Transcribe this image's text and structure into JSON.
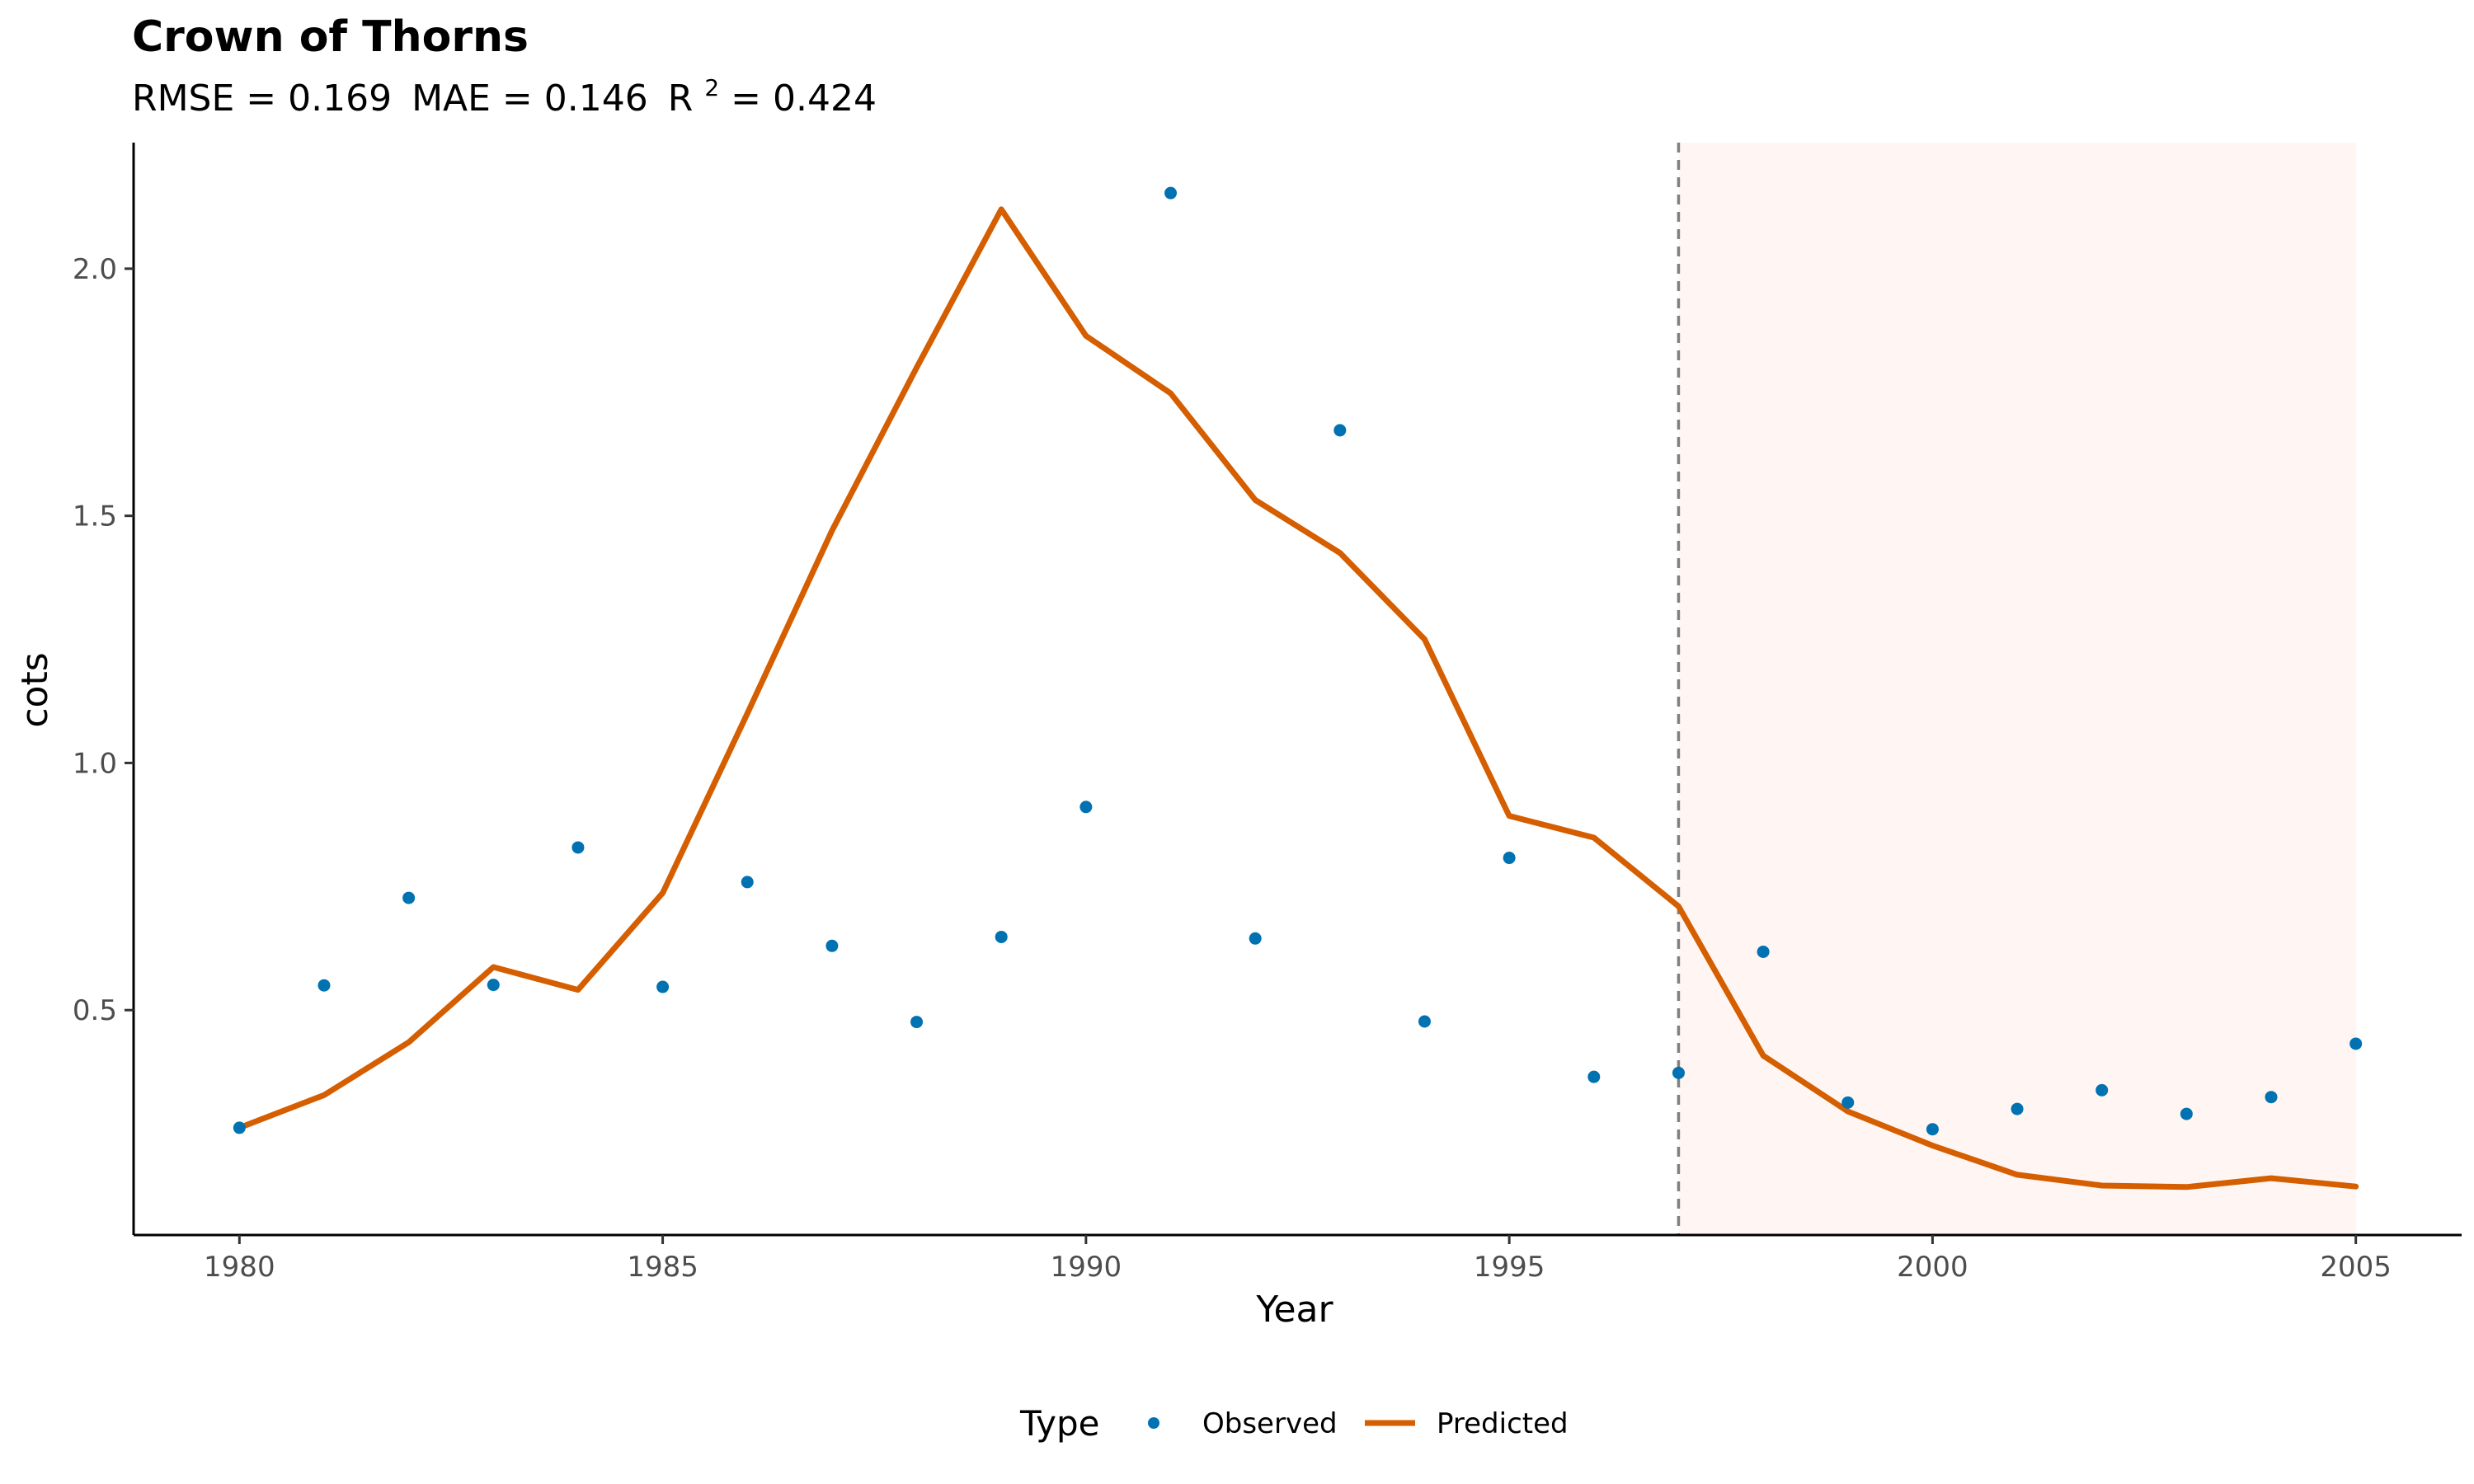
{
  "chart_data": {
    "type": "line",
    "title": "Crown of Thorns",
    "subtitle": {
      "rmse": "RMSE = 0.169",
      "mae": "MAE = 0.146",
      "r2_base": "R",
      "r2_exp": "2",
      "r2_value": " = 0.424"
    },
    "xlabel": "Year",
    "ylabel": "cots",
    "xlim": [
      1978.75,
      2006.25
    ],
    "ylim": [
      0.045,
      2.255
    ],
    "x_ticks": [
      1980,
      1985,
      1990,
      1995,
      2000,
      2005
    ],
    "y_ticks": [
      0.5,
      1.0,
      1.5,
      2.0
    ],
    "y_tick_labels": [
      "0.5",
      "1.0",
      "1.5",
      "2.0"
    ],
    "forecast_start": 1997,
    "shaded_region": [
      1997,
      2005
    ],
    "colors": {
      "observed": "#0072B2",
      "predicted": "#D55E00",
      "shade": "#FFF5F3",
      "vline": "#808080"
    },
    "legend": {
      "title": "Type",
      "position": "bottom",
      "observed_label": "Observed",
      "predicted_label": "Predicted"
    },
    "series": [
      {
        "name": "Observed",
        "kind": "scatter",
        "x": [
          1980,
          1981,
          1982,
          1983,
          1984,
          1985,
          1986,
          1987,
          1988,
          1989,
          1990,
          1991,
          1992,
          1993,
          1994,
          1995,
          1996,
          1997,
          1998,
          1999,
          2000,
          2001,
          2002,
          2003,
          2004,
          2005
        ],
        "y": [
          0.262,
          0.55,
          0.727,
          0.551,
          0.829,
          0.547,
          0.759,
          0.63,
          0.476,
          0.648,
          0.911,
          2.153,
          0.645,
          1.673,
          0.477,
          0.808,
          0.365,
          0.373,
          0.618,
          0.313,
          0.259,
          0.3,
          0.338,
          0.29,
          0.324,
          0.432
        ]
      },
      {
        "name": "Predicted",
        "kind": "line",
        "x": [
          1980,
          1981,
          1982,
          1983,
          1984,
          1985,
          1986,
          1987,
          1988,
          1989,
          1990,
          1991,
          1992,
          1993,
          1994,
          1995,
          1996,
          1997,
          1998,
          1999,
          2000,
          2001,
          2002,
          2003,
          2004,
          2005
        ],
        "y": [
          0.262,
          0.328,
          0.435,
          0.587,
          0.541,
          0.737,
          1.1,
          1.47,
          1.8,
          2.12,
          1.864,
          1.748,
          1.532,
          1.425,
          1.25,
          0.893,
          0.849,
          0.71,
          0.408,
          0.295,
          0.226,
          0.167,
          0.145,
          0.142,
          0.16,
          0.143
        ]
      }
    ]
  }
}
